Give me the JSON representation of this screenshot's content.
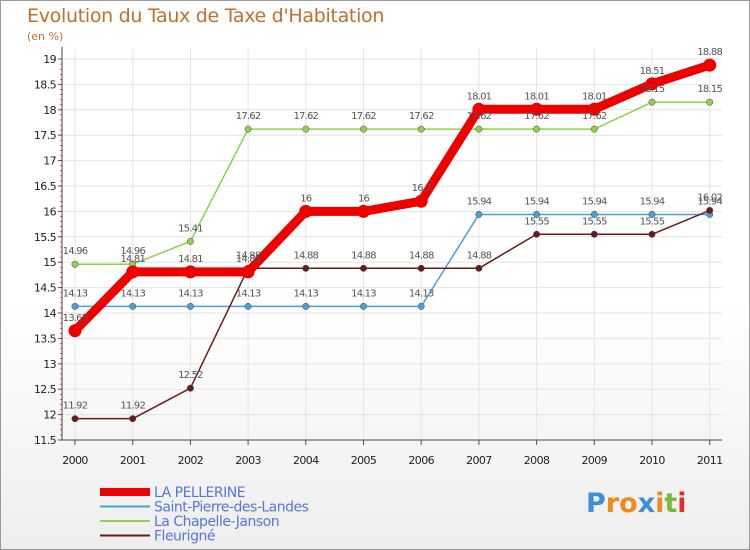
{
  "chart_data": {
    "type": "line",
    "title": "Evolution du Taux de Taxe d'Habitation",
    "subtitle": "(en %)",
    "xlabel": "",
    "ylabel": "",
    "categories": [
      "2000",
      "2001",
      "2002",
      "2003",
      "2004",
      "2005",
      "2006",
      "2007",
      "2008",
      "2009",
      "2010",
      "2011"
    ],
    "ylim": [
      11.5,
      19
    ],
    "yticks": [
      "11.5",
      "12",
      "12.5",
      "13",
      "13.5",
      "14",
      "14.5",
      "15",
      "15.5",
      "16",
      "16.5",
      "17",
      "17.5",
      "18",
      "18.5",
      "19"
    ],
    "series": [
      {
        "name": "LA PELLERINE",
        "color": "#ee0000",
        "values": [
          13.65,
          14.81,
          14.81,
          14.81,
          16,
          16,
          16.2,
          18.01,
          18.01,
          18.01,
          18.51,
          18.88
        ],
        "labels": [
          "13.65",
          "14.81",
          "14.81",
          "14.81",
          "16",
          "16",
          "16.2",
          "18.01",
          "18.01",
          "18.01",
          "18.51",
          "18.88"
        ]
      },
      {
        "name": "Saint-Pierre-des-Landes",
        "color": "#4a9fd4",
        "values": [
          14.13,
          14.13,
          14.13,
          14.13,
          14.13,
          14.13,
          14.13,
          15.94,
          15.94,
          15.94,
          15.94,
          15.94
        ],
        "labels": [
          "14.13",
          "14.13",
          "14.13",
          "14.13",
          "14.13",
          "14.13",
          "14.13",
          "15.94",
          "15.94",
          "15.94",
          "15.94",
          "15.94"
        ]
      },
      {
        "name": "La Chapelle-Janson",
        "color": "#8ed14f",
        "values": [
          14.96,
          14.96,
          15.41,
          17.62,
          17.62,
          17.62,
          17.62,
          17.62,
          17.62,
          17.62,
          18.15,
          18.15
        ],
        "labels": [
          "14.96",
          "14.96",
          "15.41",
          "17.62",
          "17.62",
          "17.62",
          "17.62",
          "17.62",
          "17.62",
          "17.62",
          "18.15",
          "18.15"
        ]
      },
      {
        "name": "Fleurigné",
        "color": "#6b1a1a",
        "values": [
          11.92,
          11.92,
          12.52,
          14.88,
          14.88,
          14.88,
          14.88,
          14.88,
          15.55,
          15.55,
          15.55,
          16.02
        ],
        "labels": [
          "11.92",
          "11.92",
          "12.52",
          "14.88",
          "14.88",
          "14.88",
          "14.88",
          "14.88",
          "15.55",
          "15.55",
          "15.55",
          "16.02"
        ]
      }
    ]
  },
  "logo": {
    "text": "Proxiti",
    "letter_colors": [
      "#3d8fd6",
      "#f08a1c",
      "#f08a1c",
      "#3d8fd6",
      "#f08a1c",
      "#7ab83a",
      "#e0302a"
    ]
  }
}
